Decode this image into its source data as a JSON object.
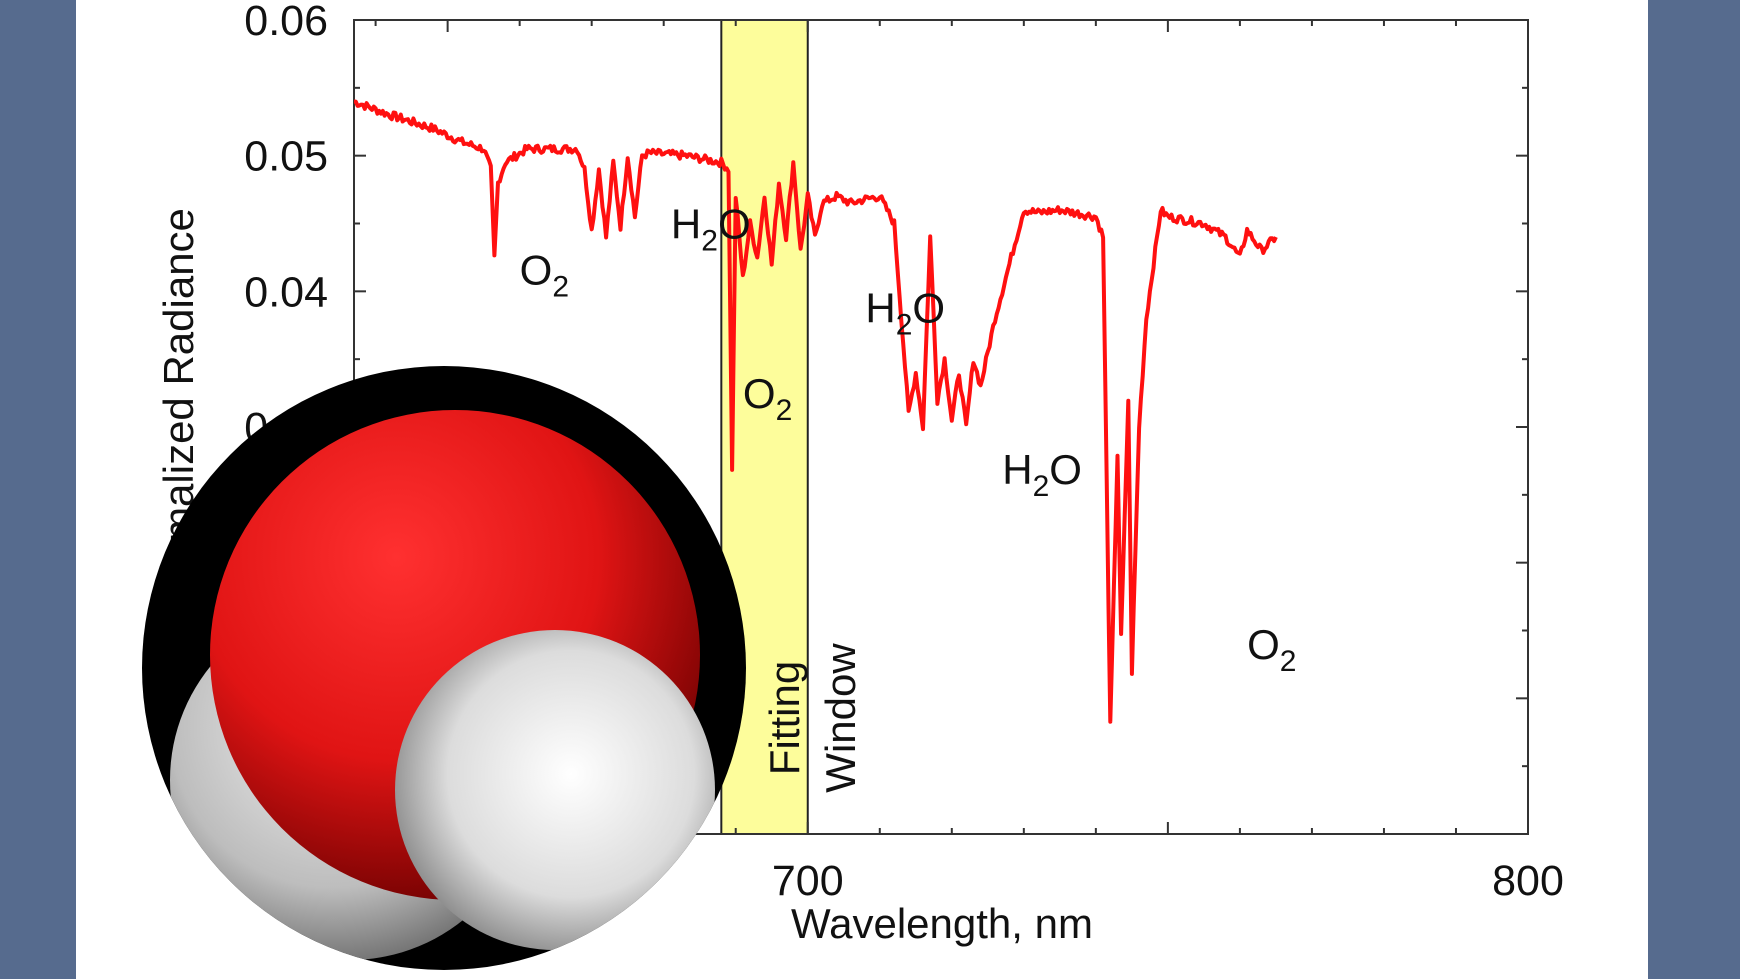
{
  "colors": {
    "background": "#566b8e",
    "panel": "#ffffff",
    "series": "#ff1010",
    "window_fill": "#fdfd9b",
    "oxygen_atom": "#e01414",
    "hydrogen_atom": "#e8e8e8"
  },
  "icons": {
    "molecule": "water-molecule-icon"
  },
  "chart_data": {
    "type": "line",
    "title": "",
    "xlabel": "Wavelength, nm",
    "ylabel": "Normalized Radiance",
    "ylabel_visible": "rmalized Radiance",
    "xlim": [
      637,
      800
    ],
    "ylim": [
      0,
      0.06
    ],
    "x_ticks": [
      "700",
      "800"
    ],
    "y_ticks": [
      "0.06",
      "0.05",
      "0.04",
      "0.03"
    ],
    "grid": false,
    "legend": "none",
    "shaded_region": {
      "x": [
        688,
        700
      ],
      "label_line1": "Fitting",
      "label_line2": "Window"
    },
    "annotations": [
      {
        "base": "O",
        "sub": "2",
        "x": 660,
        "y": 0.0405
      },
      {
        "base": "H",
        "sub": "2",
        "tail": "O",
        "x": 681,
        "y": 0.0439
      },
      {
        "base": "O",
        "sub": "2",
        "x": 691,
        "y": 0.0314
      },
      {
        "base": "H",
        "sub": "2",
        "tail": "O",
        "x": 708,
        "y": 0.0377
      },
      {
        "base": "H",
        "sub": "2",
        "tail": "O",
        "x": 727,
        "y": 0.0258
      },
      {
        "base": "O",
        "sub": "2",
        "x": 761,
        "y": 0.0129
      }
    ],
    "series": [
      {
        "points": [
          [
            637,
            0.054
          ],
          [
            642,
            0.053
          ],
          [
            648,
            0.052
          ],
          [
            652,
            0.051
          ],
          [
            655,
            0.0505
          ],
          [
            656,
            0.049
          ],
          [
            656.5,
            0.0425
          ],
          [
            657,
            0.048
          ],
          [
            658,
            0.0495
          ],
          [
            661,
            0.0505
          ],
          [
            664,
            0.0505
          ],
          [
            668,
            0.0505
          ],
          [
            669,
            0.049
          ],
          [
            670,
            0.0445
          ],
          [
            671,
            0.049
          ],
          [
            672,
            0.044
          ],
          [
            673,
            0.0495
          ],
          [
            674,
            0.0448
          ],
          [
            675,
            0.05
          ],
          [
            676,
            0.0455
          ],
          [
            677,
            0.05
          ],
          [
            678,
            0.0502
          ],
          [
            683,
            0.05
          ],
          [
            688,
            0.0495
          ],
          [
            689,
            0.049
          ],
          [
            689.5,
            0.027
          ],
          [
            690,
            0.047
          ],
          [
            691,
            0.041
          ],
          [
            692,
            0.045
          ],
          [
            693,
            0.0425
          ],
          [
            694,
            0.047
          ],
          [
            695,
            0.042
          ],
          [
            696,
            0.048
          ],
          [
            697,
            0.044
          ],
          [
            698,
            0.0495
          ],
          [
            699,
            0.043
          ],
          [
            700,
            0.047
          ],
          [
            701,
            0.044
          ],
          [
            702,
            0.0465
          ],
          [
            704,
            0.047
          ],
          [
            706,
            0.0465
          ],
          [
            708,
            0.0468
          ],
          [
            710,
            0.047
          ],
          [
            712,
            0.045
          ],
          [
            713,
            0.038
          ],
          [
            714,
            0.031
          ],
          [
            715,
            0.034
          ],
          [
            716,
            0.03
          ],
          [
            717,
            0.044
          ],
          [
            718,
            0.032
          ],
          [
            719,
            0.035
          ],
          [
            720,
            0.0305
          ],
          [
            721,
            0.034
          ],
          [
            722,
            0.03
          ],
          [
            723,
            0.035
          ],
          [
            724,
            0.033
          ],
          [
            726,
            0.038
          ],
          [
            727,
            0.04
          ],
          [
            728,
            0.042
          ],
          [
            729,
            0.044
          ],
          [
            730,
            0.046
          ],
          [
            732,
            0.0458
          ],
          [
            735,
            0.046
          ],
          [
            740,
            0.0455
          ],
          [
            741,
            0.044
          ],
          [
            742,
            0.008
          ],
          [
            743,
            0.028
          ],
          [
            743.5,
            0.0145
          ],
          [
            744.5,
            0.032
          ],
          [
            745,
            0.012
          ],
          [
            746,
            0.03
          ],
          [
            747,
            0.038
          ],
          [
            748,
            0.042
          ],
          [
            749,
            0.046
          ],
          [
            750,
            0.0455
          ],
          [
            755,
            0.045
          ],
          [
            758,
            0.044
          ],
          [
            760,
            0.0425
          ],
          [
            761,
            0.0445
          ],
          [
            763,
            0.043
          ],
          [
            765,
            0.044
          ]
        ]
      }
    ]
  }
}
